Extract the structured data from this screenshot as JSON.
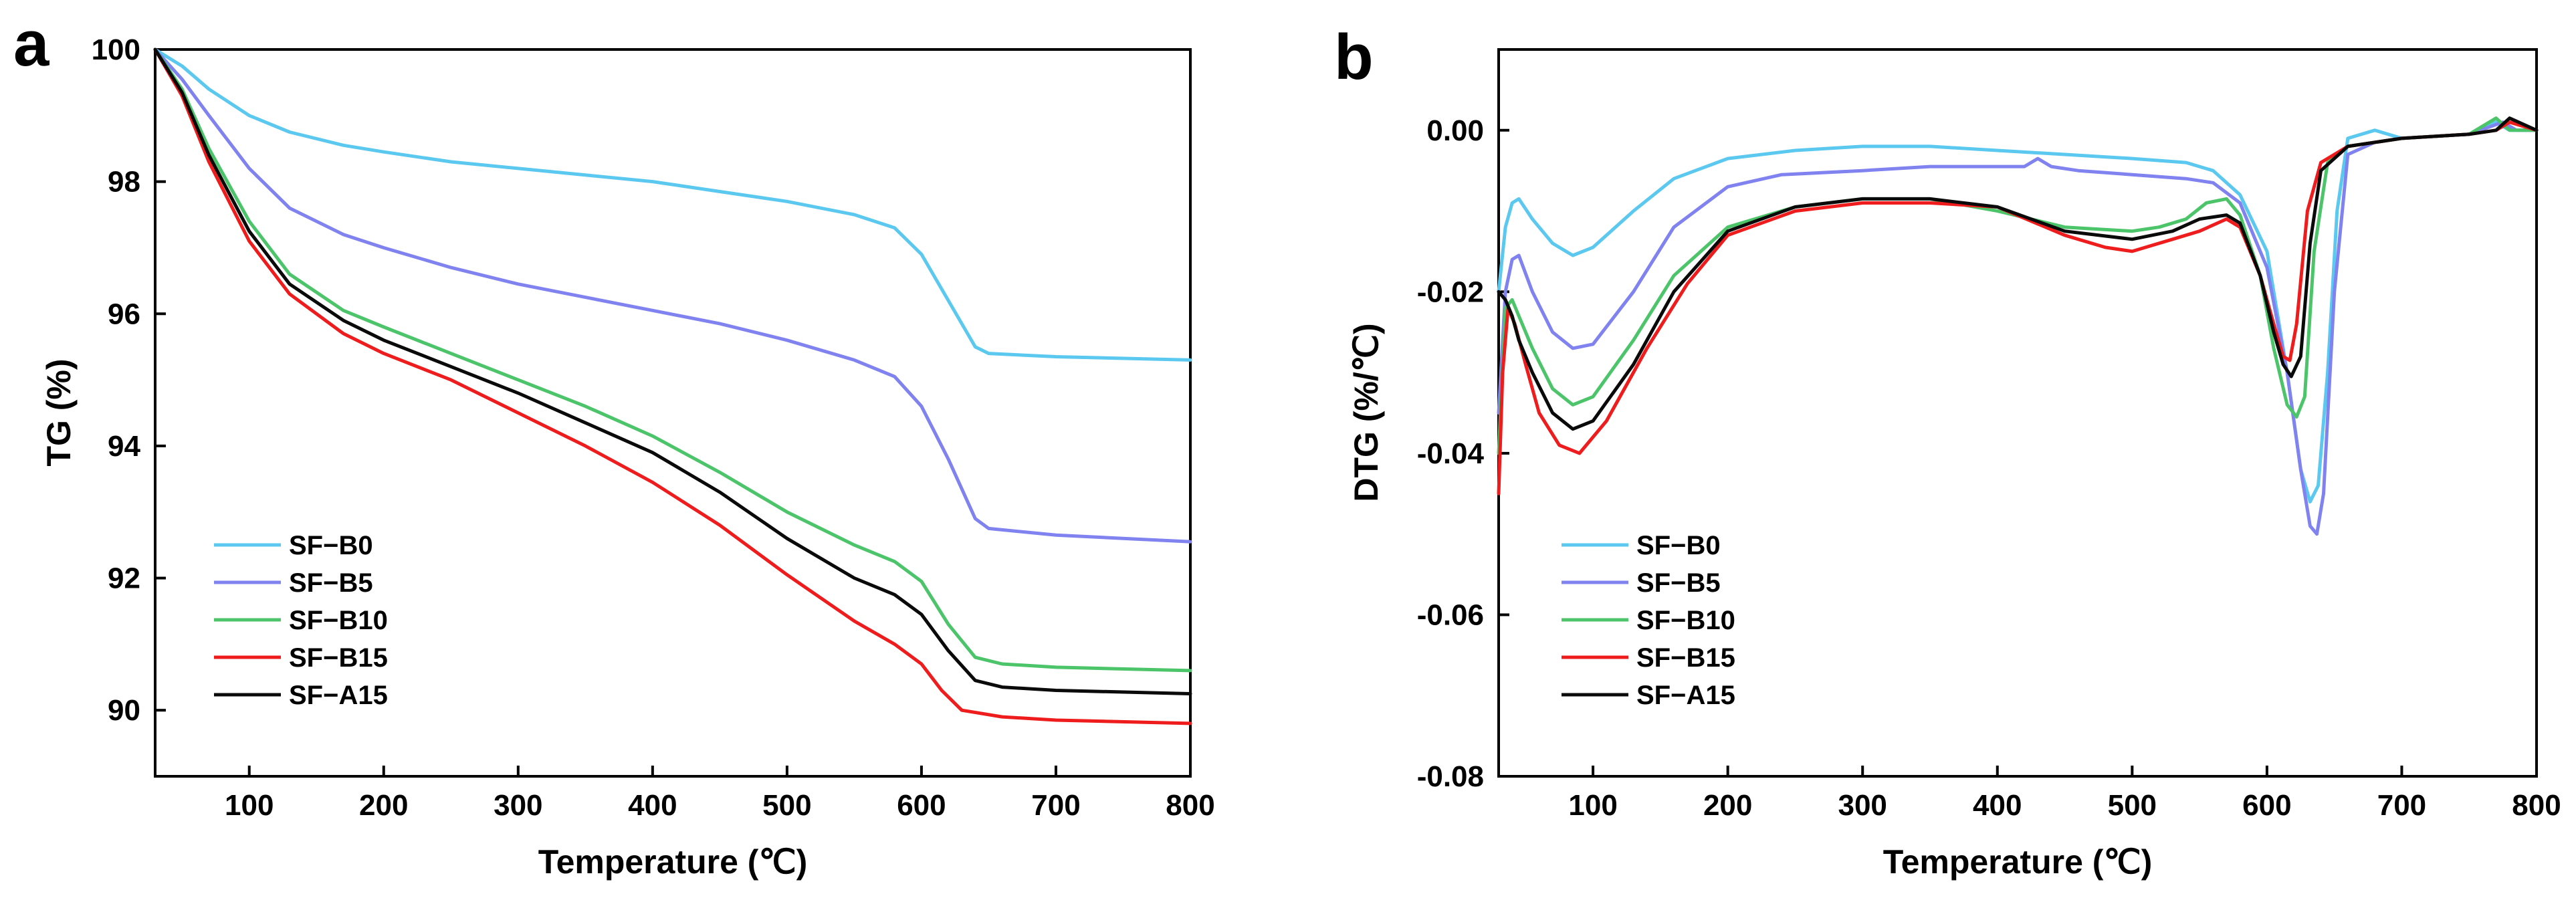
{
  "chart_data": [
    {
      "panel_label": "a",
      "type": "line",
      "xlabel": "Temperature (℃)",
      "ylabel": "TG (%)",
      "xlim": [
        30,
        800
      ],
      "ylim": [
        89,
        100
      ],
      "xticks": [
        100,
        200,
        300,
        400,
        500,
        600,
        700,
        800
      ],
      "yticks": [
        90,
        92,
        94,
        96,
        98,
        100
      ],
      "ytick_labels": [
        "90",
        "92",
        "94",
        "96",
        "98",
        "100"
      ],
      "legend_position": "lower-left",
      "series": [
        {
          "name": "SF−B0",
          "color": "#5bc8f0",
          "x": [
            30,
            50,
            70,
            100,
            130,
            170,
            200,
            250,
            300,
            350,
            400,
            450,
            500,
            550,
            580,
            600,
            620,
            640,
            650,
            700,
            800
          ],
          "y": [
            100,
            99.75,
            99.4,
            99.0,
            98.75,
            98.55,
            98.45,
            98.3,
            98.2,
            98.1,
            98.0,
            97.85,
            97.7,
            97.5,
            97.3,
            96.9,
            96.2,
            95.5,
            95.4,
            95.35,
            95.3
          ]
        },
        {
          "name": "SF−B5",
          "color": "#7f82ef",
          "x": [
            30,
            50,
            70,
            100,
            130,
            170,
            200,
            250,
            300,
            350,
            400,
            450,
            500,
            550,
            580,
            600,
            620,
            640,
            650,
            700,
            800
          ],
          "y": [
            100,
            99.55,
            99.0,
            98.2,
            97.6,
            97.2,
            97.0,
            96.7,
            96.45,
            96.25,
            96.05,
            95.85,
            95.6,
            95.3,
            95.05,
            94.6,
            93.8,
            92.9,
            92.75,
            92.65,
            92.55
          ]
        },
        {
          "name": "SF−B10",
          "color": "#4cc46a",
          "x": [
            30,
            50,
            70,
            100,
            130,
            170,
            200,
            250,
            300,
            350,
            400,
            450,
            500,
            550,
            580,
            600,
            620,
            640,
            660,
            700,
            800
          ],
          "y": [
            100,
            99.4,
            98.5,
            97.4,
            96.6,
            96.05,
            95.8,
            95.4,
            95.0,
            94.6,
            94.15,
            93.6,
            93.0,
            92.5,
            92.25,
            91.95,
            91.3,
            90.8,
            90.7,
            90.65,
            90.6
          ]
        },
        {
          "name": "SF−B15",
          "color": "#ee1c1c",
          "x": [
            30,
            50,
            70,
            100,
            130,
            170,
            200,
            250,
            300,
            350,
            400,
            450,
            500,
            550,
            580,
            600,
            615,
            630,
            660,
            700,
            800
          ],
          "y": [
            100,
            99.3,
            98.3,
            97.1,
            96.3,
            95.7,
            95.4,
            95.0,
            94.5,
            94.0,
            93.45,
            92.8,
            92.05,
            91.35,
            91.0,
            90.7,
            90.3,
            90.0,
            89.9,
            89.85,
            89.8
          ]
        },
        {
          "name": "SF−A15",
          "color": "#0a0a0a",
          "x": [
            30,
            50,
            70,
            100,
            130,
            170,
            200,
            250,
            300,
            350,
            400,
            450,
            500,
            550,
            580,
            600,
            620,
            640,
            660,
            700,
            800
          ],
          "y": [
            100,
            99.35,
            98.4,
            97.25,
            96.45,
            95.9,
            95.6,
            95.2,
            94.8,
            94.35,
            93.9,
            93.3,
            92.6,
            92.0,
            91.75,
            91.45,
            90.9,
            90.45,
            90.35,
            90.3,
            90.25
          ]
        }
      ]
    },
    {
      "panel_label": "b",
      "type": "line",
      "xlabel": "Temperature (℃)",
      "ylabel": "DTG (%/℃)",
      "xlim": [
        30,
        800
      ],
      "ylim": [
        -0.08,
        0.01
      ],
      "xticks": [
        100,
        200,
        300,
        400,
        500,
        600,
        700,
        800
      ],
      "yticks": [
        -0.08,
        -0.06,
        -0.04,
        -0.02,
        0.0
      ],
      "ytick_labels": [
        "-0.08",
        "-0.06",
        "-0.04",
        "-0.02",
        "0.00"
      ],
      "legend_position": "lower-left",
      "series": [
        {
          "name": "SF−B0",
          "color": "#5bc8f0",
          "x": [
            30,
            35,
            40,
            45,
            55,
            70,
            85,
            100,
            130,
            160,
            200,
            250,
            300,
            350,
            400,
            450,
            500,
            540,
            560,
            580,
            600,
            615,
            625,
            632,
            638,
            645,
            652,
            660,
            680,
            700,
            750,
            770,
            780,
            800
          ],
          "y": [
            -0.02,
            -0.012,
            -0.009,
            -0.0085,
            -0.011,
            -0.014,
            -0.0155,
            -0.0145,
            -0.01,
            -0.006,
            -0.0035,
            -0.0025,
            -0.002,
            -0.002,
            -0.0025,
            -0.003,
            -0.0035,
            -0.004,
            -0.005,
            -0.008,
            -0.015,
            -0.03,
            -0.042,
            -0.046,
            -0.044,
            -0.03,
            -0.01,
            -0.001,
            0.0,
            -0.001,
            -0.0005,
            0.001,
            0.0,
            0.0
          ]
        },
        {
          "name": "SF−B5",
          "color": "#7f82ef",
          "x": [
            30,
            35,
            40,
            45,
            55,
            70,
            85,
            100,
            130,
            160,
            200,
            240,
            300,
            350,
            400,
            420,
            430,
            440,
            460,
            500,
            540,
            560,
            580,
            600,
            615,
            625,
            632,
            637,
            642,
            650,
            660,
            680,
            700,
            750,
            775,
            785,
            800
          ],
          "y": [
            -0.035,
            -0.02,
            -0.016,
            -0.0155,
            -0.02,
            -0.025,
            -0.027,
            -0.0265,
            -0.02,
            -0.012,
            -0.007,
            -0.0055,
            -0.005,
            -0.0045,
            -0.0045,
            -0.0045,
            -0.0035,
            -0.0045,
            -0.005,
            -0.0055,
            -0.006,
            -0.0065,
            -0.009,
            -0.017,
            -0.03,
            -0.042,
            -0.049,
            -0.05,
            -0.045,
            -0.02,
            -0.003,
            -0.0015,
            -0.001,
            -0.0005,
            0.001,
            0.0,
            0.0
          ]
        },
        {
          "name": "SF−B10",
          "color": "#4cc46a",
          "x": [
            30,
            35,
            40,
            45,
            55,
            70,
            85,
            100,
            130,
            160,
            200,
            250,
            300,
            350,
            400,
            450,
            500,
            520,
            540,
            555,
            570,
            580,
            595,
            605,
            615,
            622,
            628,
            635,
            645,
            660,
            700,
            750,
            770,
            780,
            800
          ],
          "y": [
            -0.04,
            -0.022,
            -0.021,
            -0.023,
            -0.027,
            -0.032,
            -0.034,
            -0.033,
            -0.026,
            -0.018,
            -0.012,
            -0.0095,
            -0.0085,
            -0.0085,
            -0.01,
            -0.012,
            -0.0125,
            -0.012,
            -0.011,
            -0.009,
            -0.0085,
            -0.0105,
            -0.018,
            -0.027,
            -0.034,
            -0.0355,
            -0.033,
            -0.015,
            -0.004,
            -0.002,
            -0.001,
            -0.0005,
            0.0015,
            0.0,
            0.0
          ]
        },
        {
          "name": "SF−B15",
          "color": "#ee1c1c",
          "x": [
            30,
            33,
            37,
            42,
            50,
            60,
            75,
            90,
            110,
            140,
            170,
            200,
            250,
            300,
            350,
            400,
            450,
            480,
            500,
            530,
            550,
            570,
            580,
            595,
            605,
            612,
            617,
            622,
            630,
            640,
            660,
            700,
            750,
            770,
            780,
            800
          ],
          "y": [
            -0.045,
            -0.03,
            -0.022,
            -0.024,
            -0.029,
            -0.035,
            -0.039,
            -0.04,
            -0.036,
            -0.027,
            -0.019,
            -0.013,
            -0.01,
            -0.009,
            -0.009,
            -0.0095,
            -0.013,
            -0.0145,
            -0.015,
            -0.0135,
            -0.0125,
            -0.011,
            -0.012,
            -0.018,
            -0.024,
            -0.028,
            -0.0285,
            -0.024,
            -0.01,
            -0.004,
            -0.002,
            -0.001,
            -0.0005,
            0.0,
            0.001,
            0.0
          ]
        },
        {
          "name": "SF−A15",
          "color": "#0a0a0a",
          "x": [
            30,
            35,
            40,
            45,
            55,
            70,
            85,
            100,
            130,
            160,
            200,
            250,
            300,
            350,
            400,
            450,
            500,
            530,
            550,
            570,
            580,
            595,
            605,
            612,
            618,
            625,
            632,
            640,
            660,
            700,
            750,
            770,
            780,
            800
          ],
          "y": [
            -0.02,
            -0.021,
            -0.023,
            -0.026,
            -0.03,
            -0.035,
            -0.037,
            -0.036,
            -0.029,
            -0.02,
            -0.0125,
            -0.0095,
            -0.0085,
            -0.0085,
            -0.0095,
            -0.0125,
            -0.0135,
            -0.0125,
            -0.011,
            -0.0105,
            -0.0115,
            -0.018,
            -0.025,
            -0.029,
            -0.0305,
            -0.028,
            -0.014,
            -0.005,
            -0.002,
            -0.001,
            -0.0005,
            0.0,
            0.0015,
            0.0
          ]
        }
      ]
    }
  ]
}
